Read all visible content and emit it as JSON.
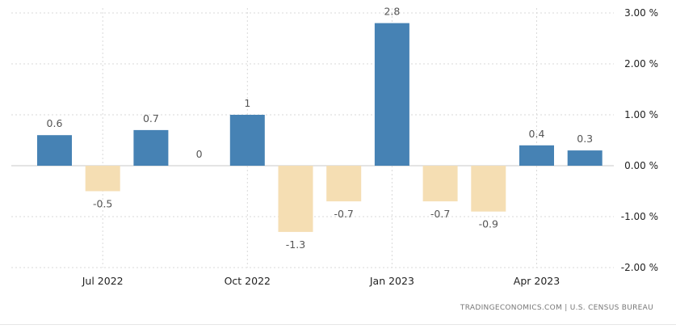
{
  "source": "TRADINGECONOMICS.COM | U.S. CENSUS BUREAU",
  "colors": {
    "positive": "#4682b4",
    "negative": "#f5deb3"
  },
  "chart_data": {
    "type": "bar",
    "categories": [
      "Jun 2022",
      "Jul 2022",
      "Aug 2022",
      "Sep 2022",
      "Oct 2022",
      "Nov 2022",
      "Dec 2022",
      "Jan 2023",
      "Feb 2023",
      "Mar 2023",
      "Apr 2023",
      "May 2023"
    ],
    "values": [
      0.6,
      -0.5,
      0.7,
      0,
      1,
      -1.3,
      -0.7,
      2.8,
      -0.7,
      -0.9,
      0.4,
      0.3
    ],
    "value_labels": [
      "0.6",
      "-0.5",
      "0.7",
      "0",
      "1",
      "-1.3",
      "-0.7",
      "2.8",
      "-0.7",
      "-0.9",
      "0.4",
      "0.3"
    ],
    "x_ticks": [
      {
        "label": "Jul 2022",
        "category": "Jul 2022"
      },
      {
        "label": "Oct 2022",
        "category": "Oct 2022"
      },
      {
        "label": "Jan 2023",
        "category": "Jan 2023"
      },
      {
        "label": "Apr 2023",
        "category": "Apr 2023"
      }
    ],
    "y_ticks": [
      3,
      2,
      1,
      0,
      -1,
      -2
    ],
    "y_tick_labels": [
      "3.00 %",
      "2.00 %",
      "1.00 %",
      "0.00 %",
      "-1.00 %",
      "-2.00 %"
    ],
    "ylim": [
      -2,
      3
    ],
    "y_axis_side": "right",
    "grid": true,
    "title": "",
    "xlabel": "",
    "ylabel": ""
  }
}
